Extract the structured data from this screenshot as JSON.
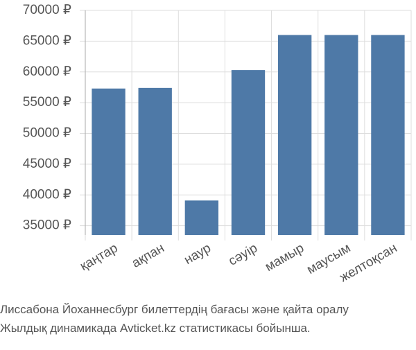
{
  "chart_data": {
    "type": "bar",
    "categories": [
      "қаңтар",
      "ақпан",
      "наур",
      "сәуір",
      "мамыр",
      "маусым",
      "желтоқсан"
    ],
    "values": [
      57300,
      57400,
      39100,
      60300,
      66000,
      66000,
      66000
    ],
    "color": "#4e79a7",
    "ylim": [
      33500,
      70000
    ],
    "yticks": [
      {
        "value": 35000,
        "label": "35000 ₽"
      },
      {
        "value": 40000,
        "label": "40000 ₽"
      },
      {
        "value": 45000,
        "label": "45000 ₽"
      },
      {
        "value": 50000,
        "label": "50000 ₽"
      },
      {
        "value": 55000,
        "label": "55000 ₽"
      },
      {
        "value": 60000,
        "label": "60000 ₽"
      },
      {
        "value": 65000,
        "label": "65000 ₽"
      },
      {
        "value": 70000,
        "label": "70000 ₽"
      }
    ],
    "grid": true,
    "caption": [
      "Лиссабона Йоханнесбург билеттердің бағасы және қайта оралу",
      "Жылдық динамикада Avticket.kz статистикасы бойынша."
    ]
  }
}
